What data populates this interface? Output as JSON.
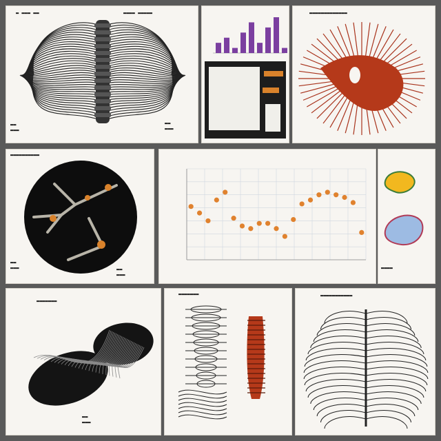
{
  "collage": {
    "panels": [
      {
        "kind": "sketch-spine"
      },
      {
        "kind": "mini-bar-chart"
      },
      {
        "kind": "render-red-organ"
      },
      {
        "kind": "render-branch"
      },
      {
        "kind": "scatter-chart"
      },
      {
        "kind": "render-dark-organ"
      },
      {
        "kind": "sketch-specimens"
      },
      {
        "kind": "sketch-ribcage"
      }
    ]
  },
  "chart_data": {
    "type": "scatter",
    "title": "",
    "xlabel": "",
    "ylabel": "",
    "x_ticks": [
      "",
      "",
      "",
      "",
      "",
      "",
      ""
    ],
    "y_ticks": [
      "",
      "",
      "",
      "",
      "",
      "",
      ""
    ],
    "ylim": [
      0,
      7
    ],
    "points": [
      {
        "x": 1,
        "y": 4.1
      },
      {
        "x": 2,
        "y": 3.6
      },
      {
        "x": 3,
        "y": 3.0
      },
      {
        "x": 4,
        "y": 4.6
      },
      {
        "x": 5,
        "y": 5.2
      },
      {
        "x": 6,
        "y": 3.2
      },
      {
        "x": 7,
        "y": 2.6
      },
      {
        "x": 8,
        "y": 2.4
      },
      {
        "x": 9,
        "y": 2.8
      },
      {
        "x": 10,
        "y": 2.8
      },
      {
        "x": 11,
        "y": 2.4
      },
      {
        "x": 12,
        "y": 1.8
      },
      {
        "x": 13,
        "y": 3.1
      },
      {
        "x": 14,
        "y": 4.3
      },
      {
        "x": 15,
        "y": 4.6
      },
      {
        "x": 16,
        "y": 5.0
      },
      {
        "x": 17,
        "y": 5.2
      },
      {
        "x": 18,
        "y": 5.0
      },
      {
        "x": 19,
        "y": 4.8
      },
      {
        "x": 20,
        "y": 4.4
      },
      {
        "x": 21,
        "y": 2.1
      }
    ],
    "marker_color": "#e0822e",
    "grid": true
  },
  "mini_chart_data": {
    "type": "bar",
    "values": [
      2,
      3,
      1,
      4,
      6,
      2,
      5,
      7,
      1
    ],
    "bar_color": "#7b3fa0"
  },
  "colors": {
    "background": "#5a5a5a",
    "panel": "#f7f5f1",
    "ink": "#222222",
    "organ_red": "#b5391a",
    "branch_orange": "#d9822b"
  }
}
